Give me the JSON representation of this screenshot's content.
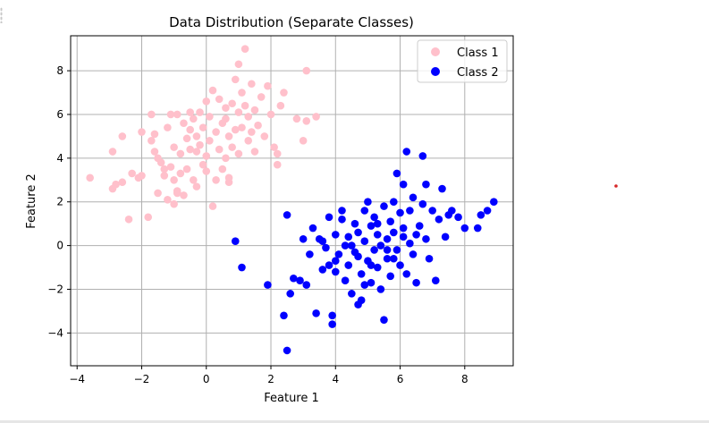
{
  "chart_data": {
    "type": "scatter",
    "title": "Data Distribution (Separate Classes)",
    "xlabel": "Feature 1",
    "ylabel": "Feature 2",
    "xlim": [
      -4.2,
      9.5
    ],
    "ylim": [
      -5.5,
      9.6
    ],
    "xticks": [
      -4,
      -2,
      0,
      2,
      4,
      6,
      8
    ],
    "xtick_labels": [
      "−4",
      "−2",
      "0",
      "2",
      "4",
      "6",
      "8"
    ],
    "yticks": [
      -4,
      -2,
      0,
      2,
      4,
      6,
      8
    ],
    "ytick_labels": [
      "−4",
      "−2",
      "0",
      "2",
      "4",
      "6",
      "8"
    ],
    "grid": true,
    "legend_position": "top-right",
    "series": [
      {
        "name": "Class 1",
        "color": "#ffc0cb",
        "points": [
          [
            -3.6,
            3.1
          ],
          [
            -2.9,
            2.6
          ],
          [
            -2.8,
            2.8
          ],
          [
            -2.6,
            2.9
          ],
          [
            -2.4,
            1.2
          ],
          [
            -2.3,
            3.3
          ],
          [
            -2.1,
            3.1
          ],
          [
            -2.0,
            3.2
          ],
          [
            -2.0,
            5.2
          ],
          [
            -1.8,
            1.3
          ],
          [
            -1.7,
            4.8
          ],
          [
            -1.7,
            6.0
          ],
          [
            -1.6,
            4.3
          ],
          [
            -1.6,
            5.1
          ],
          [
            -1.5,
            4.0
          ],
          [
            -1.5,
            2.4
          ],
          [
            -1.4,
            3.8
          ],
          [
            -1.3,
            3.5
          ],
          [
            -1.3,
            3.2
          ],
          [
            -1.2,
            2.1
          ],
          [
            -1.2,
            5.4
          ],
          [
            -1.1,
            6.0
          ],
          [
            -1.1,
            3.6
          ],
          [
            -1.0,
            3.0
          ],
          [
            -1.0,
            1.9
          ],
          [
            -1.0,
            4.5
          ],
          [
            -0.9,
            6.0
          ],
          [
            -0.9,
            2.5
          ],
          [
            -0.8,
            4.2
          ],
          [
            -0.8,
            3.3
          ],
          [
            -0.7,
            5.6
          ],
          [
            -0.7,
            2.3
          ],
          [
            -0.6,
            4.9
          ],
          [
            -0.6,
            3.5
          ],
          [
            -0.5,
            5.3
          ],
          [
            -0.5,
            4.4
          ],
          [
            -0.4,
            3.0
          ],
          [
            -0.4,
            5.8
          ],
          [
            -0.3,
            5.0
          ],
          [
            -0.3,
            2.7
          ],
          [
            -0.2,
            6.1
          ],
          [
            -0.2,
            4.6
          ],
          [
            -0.1,
            3.7
          ],
          [
            -0.1,
            5.4
          ],
          [
            0.0,
            6.6
          ],
          [
            0.0,
            4.1
          ],
          [
            0.0,
            3.4
          ],
          [
            0.1,
            5.9
          ],
          [
            0.1,
            4.8
          ],
          [
            0.2,
            7.1
          ],
          [
            0.2,
            1.8
          ],
          [
            0.3,
            5.2
          ],
          [
            0.3,
            3.0
          ],
          [
            0.4,
            6.7
          ],
          [
            0.4,
            4.4
          ],
          [
            0.5,
            5.6
          ],
          [
            0.5,
            3.5
          ],
          [
            0.6,
            6.3
          ],
          [
            0.6,
            4.0
          ],
          [
            0.7,
            5.0
          ],
          [
            0.7,
            2.9
          ],
          [
            0.8,
            6.5
          ],
          [
            0.8,
            4.5
          ],
          [
            0.9,
            7.6
          ],
          [
            0.9,
            5.3
          ],
          [
            1.0,
            8.3
          ],
          [
            1.0,
            6.1
          ],
          [
            1.0,
            4.2
          ],
          [
            1.1,
            7.0
          ],
          [
            1.1,
            5.4
          ],
          [
            1.2,
            9.0
          ],
          [
            1.2,
            6.4
          ],
          [
            1.3,
            4.8
          ],
          [
            1.3,
            5.9
          ],
          [
            1.4,
            7.4
          ],
          [
            1.5,
            6.2
          ],
          [
            1.5,
            4.3
          ],
          [
            1.6,
            5.5
          ],
          [
            1.7,
            6.8
          ],
          [
            1.8,
            5.0
          ],
          [
            1.9,
            7.3
          ],
          [
            2.0,
            6.0
          ],
          [
            2.1,
            4.5
          ],
          [
            2.2,
            4.2
          ],
          [
            2.2,
            3.7
          ],
          [
            2.3,
            6.4
          ],
          [
            2.4,
            7.0
          ],
          [
            2.8,
            5.8
          ],
          [
            3.0,
            4.8
          ],
          [
            3.1,
            8.0
          ],
          [
            3.1,
            5.7
          ],
          [
            3.4,
            5.9
          ],
          [
            -2.9,
            4.3
          ],
          [
            -2.6,
            5.0
          ],
          [
            -0.9,
            2.4
          ],
          [
            0.7,
            3.1
          ],
          [
            -0.3,
            4.3
          ],
          [
            0.6,
            5.8
          ],
          [
            -0.5,
            6.1
          ],
          [
            1.4,
            5.2
          ]
        ]
      },
      {
        "name": "Class 2",
        "color": "#0000ff",
        "points": [
          [
            0.9,
            0.2
          ],
          [
            1.1,
            -1.0
          ],
          [
            1.9,
            -1.8
          ],
          [
            2.4,
            -3.2
          ],
          [
            2.5,
            1.4
          ],
          [
            2.5,
            -4.8
          ],
          [
            2.6,
            -2.2
          ],
          [
            2.7,
            -1.5
          ],
          [
            2.9,
            -1.6
          ],
          [
            3.0,
            0.3
          ],
          [
            3.1,
            -1.8
          ],
          [
            3.2,
            -0.4
          ],
          [
            3.3,
            0.8
          ],
          [
            3.4,
            -3.1
          ],
          [
            3.5,
            0.3
          ],
          [
            3.6,
            -1.1
          ],
          [
            3.7,
            -0.1
          ],
          [
            3.8,
            1.3
          ],
          [
            3.8,
            -0.9
          ],
          [
            3.9,
            -3.2
          ],
          [
            3.9,
            -3.6
          ],
          [
            4.0,
            0.5
          ],
          [
            4.0,
            -1.2
          ],
          [
            4.1,
            -0.4
          ],
          [
            4.2,
            1.2
          ],
          [
            4.2,
            1.6
          ],
          [
            4.3,
            -1.6
          ],
          [
            4.4,
            0.4
          ],
          [
            4.4,
            -0.9
          ],
          [
            4.5,
            0.0
          ],
          [
            4.5,
            -2.2
          ],
          [
            4.6,
            1.0
          ],
          [
            4.6,
            -0.3
          ],
          [
            4.7,
            -2.7
          ],
          [
            4.7,
            0.6
          ],
          [
            4.8,
            -1.3
          ],
          [
            4.8,
            -2.5
          ],
          [
            4.9,
            1.6
          ],
          [
            4.9,
            0.2
          ],
          [
            5.0,
            -0.7
          ],
          [
            5.0,
            2.0
          ],
          [
            5.1,
            -1.7
          ],
          [
            5.1,
            0.9
          ],
          [
            5.2,
            -0.2
          ],
          [
            5.2,
            1.3
          ],
          [
            5.3,
            0.5
          ],
          [
            5.3,
            -1.0
          ],
          [
            5.4,
            -2.0
          ],
          [
            5.4,
            0.0
          ],
          [
            5.5,
            1.8
          ],
          [
            5.5,
            -3.4
          ],
          [
            5.6,
            0.3
          ],
          [
            5.6,
            -0.6
          ],
          [
            5.7,
            1.1
          ],
          [
            5.7,
            -1.4
          ],
          [
            5.8,
            0.6
          ],
          [
            5.8,
            2.0
          ],
          [
            5.9,
            -0.2
          ],
          [
            5.9,
            3.3
          ],
          [
            6.0,
            -0.9
          ],
          [
            6.0,
            1.5
          ],
          [
            6.1,
            0.4
          ],
          [
            6.1,
            2.8
          ],
          [
            6.2,
            -1.3
          ],
          [
            6.2,
            4.3
          ],
          [
            6.3,
            0.1
          ],
          [
            6.3,
            1.6
          ],
          [
            6.4,
            -0.4
          ],
          [
            6.4,
            2.2
          ],
          [
            6.5,
            -1.7
          ],
          [
            6.6,
            0.9
          ],
          [
            6.7,
            1.9
          ],
          [
            6.7,
            4.1
          ],
          [
            6.8,
            0.3
          ],
          [
            6.8,
            2.8
          ],
          [
            6.9,
            -0.6
          ],
          [
            7.0,
            1.6
          ],
          [
            7.1,
            -1.6
          ],
          [
            7.2,
            1.2
          ],
          [
            7.3,
            2.6
          ],
          [
            7.4,
            0.4
          ],
          [
            7.5,
            1.4
          ],
          [
            7.6,
            1.6
          ],
          [
            7.8,
            1.3
          ],
          [
            8.0,
            0.8
          ],
          [
            8.4,
            0.8
          ],
          [
            8.5,
            1.4
          ],
          [
            8.7,
            1.6
          ],
          [
            8.9,
            2.0
          ],
          [
            4.3,
            0.0
          ],
          [
            4.7,
            -0.5
          ],
          [
            5.1,
            -0.9
          ],
          [
            5.6,
            -0.2
          ],
          [
            6.1,
            0.8
          ],
          [
            3.6,
            0.2
          ],
          [
            4.0,
            -0.7
          ],
          [
            5.3,
            1.0
          ],
          [
            6.5,
            0.5
          ],
          [
            4.9,
            -1.8
          ],
          [
            5.8,
            -0.6
          ]
        ]
      }
    ]
  },
  "legend": {
    "class1_label": "Class 1",
    "class2_label": "Class 2"
  },
  "colors": {
    "marker_stray": "#d62728"
  }
}
